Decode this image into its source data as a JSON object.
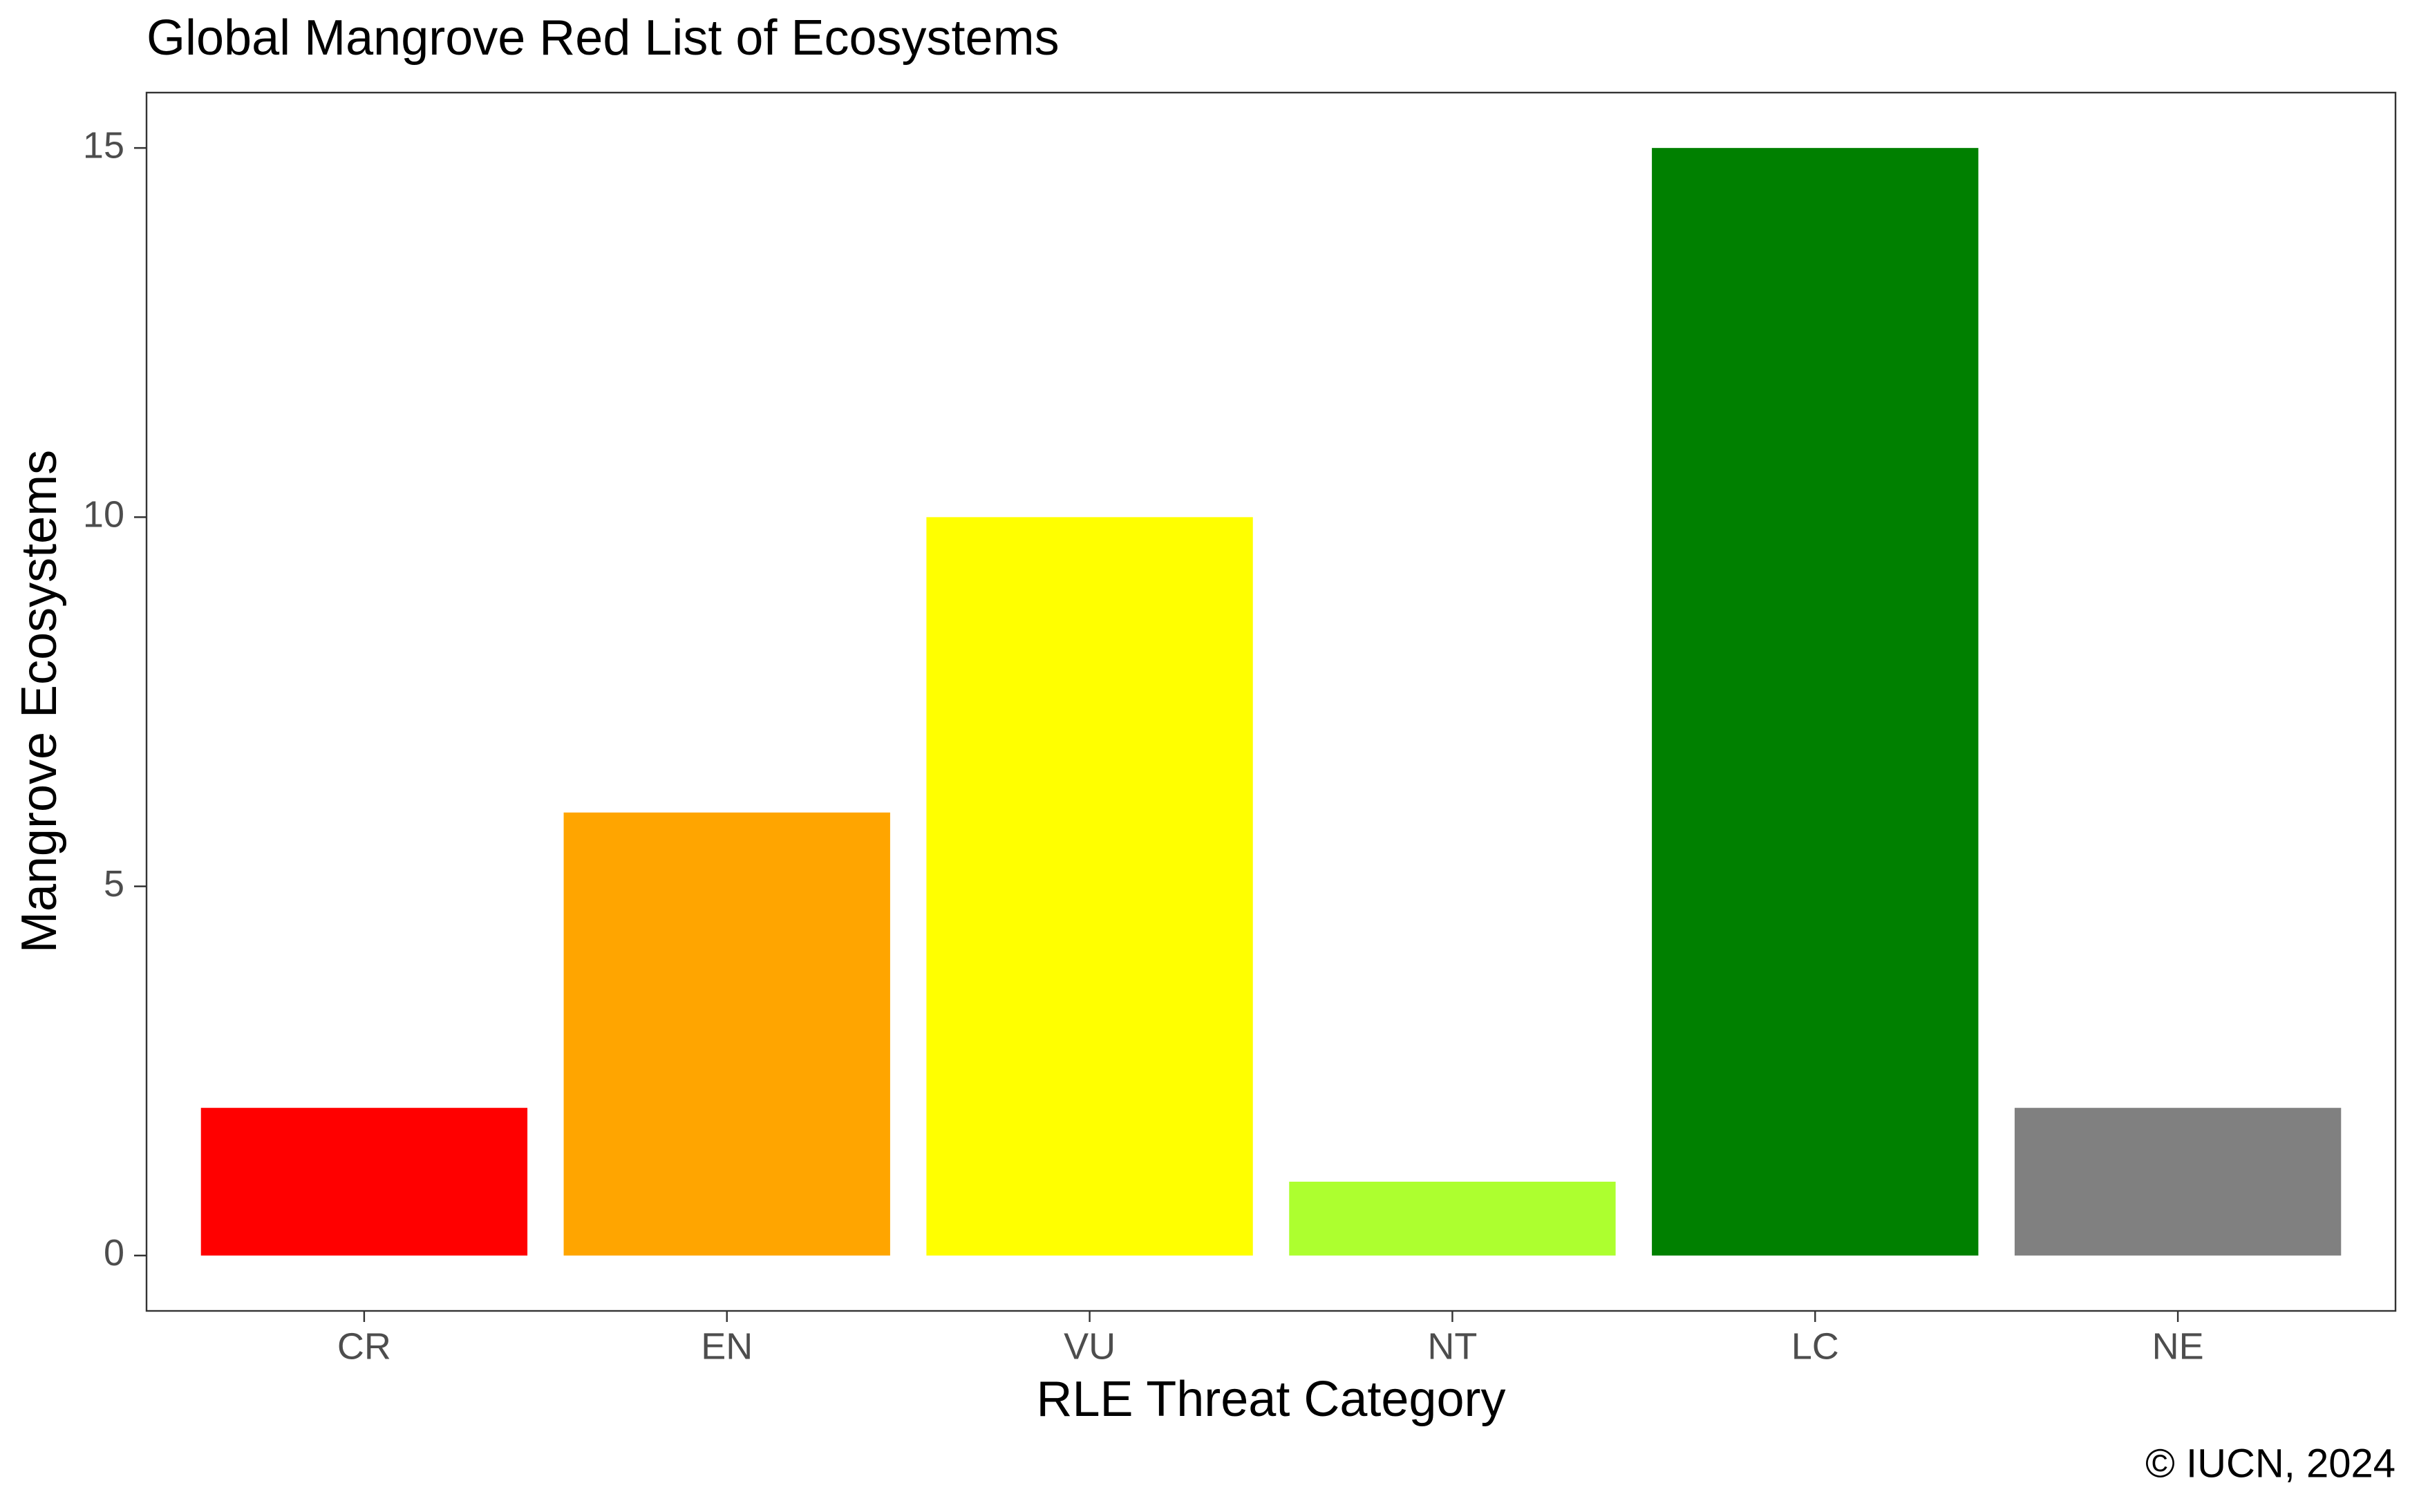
{
  "chart_data": {
    "type": "bar",
    "title": "Global Mangrove Red List of Ecosystems",
    "x_label": "RLE Threat Category",
    "y_label": "Mangrove Ecosystems",
    "caption": "© IUCN, 2024",
    "categories": [
      "CR",
      "EN",
      "VU",
      "NT",
      "LC",
      "NE"
    ],
    "values": [
      2,
      6,
      10,
      1,
      15,
      2
    ],
    "colors": [
      "#ff0000",
      "#ffa500",
      "#ffff00",
      "#adff2f",
      "#008000",
      "#808080"
    ],
    "ylim": [
      -0.75,
      15.75
    ],
    "yticks": [
      0,
      5,
      10,
      15
    ],
    "grid": false
  }
}
